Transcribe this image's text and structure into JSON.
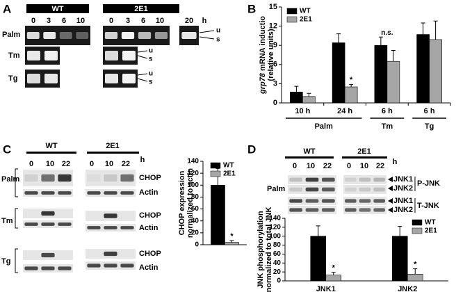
{
  "panels": {
    "A": {
      "letter": "A",
      "groups": [
        "WT",
        "2E1"
      ],
      "wt_times": [
        "0",
        "3",
        "6",
        "10"
      ],
      "e1_times": [
        "0",
        "3",
        "6",
        "10",
        "20"
      ],
      "unit": "h",
      "rows": [
        "Palm",
        "Tm",
        "Tg"
      ],
      "bands": [
        "u",
        "s"
      ]
    },
    "C": {
      "letter": "C",
      "groups": [
        "WT",
        "2E1"
      ],
      "times": [
        "0",
        "10",
        "22"
      ],
      "unit": "h",
      "rows": [
        "Palm",
        "Tm",
        "Tg"
      ],
      "proteins": [
        "CHOP",
        "Actin"
      ]
    },
    "D": {
      "letter": "D",
      "groups": [
        "WT",
        "2E1"
      ],
      "times": [
        "0",
        "10",
        "22"
      ],
      "unit": "h",
      "row": "Palm",
      "isoforms": [
        "JNK1",
        "JNK2"
      ],
      "blots": [
        "P-JNK",
        "T-JNK"
      ]
    },
    "B": {
      "letter": "B"
    }
  },
  "chart_data": [
    {
      "type": "bar",
      "ylabel_italic": "grp78",
      "ylabel": "mRNA inductio",
      "ylabel2": "(relative units)",
      "categories": [
        "10 h",
        "24 h",
        "6 h",
        "6 h"
      ],
      "groups": [
        {
          "name": "Palm",
          "size": 2
        },
        {
          "name": "Tm",
          "size": 1
        },
        {
          "name": "Tg",
          "size": 1
        }
      ],
      "series": [
        {
          "name": "WT",
          "color": "#000000",
          "values": [
            1.7,
            9.4,
            9.0,
            10.7
          ],
          "errors": [
            0.9,
            1.4,
            1.3,
            1.8
          ]
        },
        {
          "name": "2E1",
          "color": "#a6a6a6",
          "values": [
            1.0,
            2.5,
            6.5,
            9.9
          ],
          "errors": [
            0.5,
            0.4,
            1.7,
            2.9
          ]
        }
      ],
      "ylim": [
        0,
        15
      ],
      "yticks": [
        0,
        3,
        6,
        9,
        12,
        15
      ],
      "legend": "upper left",
      "annotations": [
        {
          "text": "*",
          "series": 1,
          "category": 1
        },
        {
          "text": "n.s.",
          "category": 2
        }
      ]
    },
    {
      "type": "bar",
      "ylabel": "CHOP expression",
      "ylabel2": "normalized to actin",
      "categories": [
        null
      ],
      "series": [
        {
          "name": "WT",
          "color": "#000000",
          "values": [
            100
          ],
          "errors": [
            28
          ]
        },
        {
          "name": "2E1",
          "color": "#a6a6a6",
          "values": [
            4
          ],
          "errors": [
            3
          ]
        }
      ],
      "ylim": [
        0,
        140
      ],
      "yticks": [
        0,
        20,
        40,
        60,
        80,
        100,
        120,
        140
      ],
      "legend": "upper right",
      "annotations": [
        {
          "text": "*",
          "series": 1,
          "category": 0
        }
      ]
    },
    {
      "type": "bar",
      "ylabel": "JNK phosphorylation",
      "ylabel2": "normalized to total JNK",
      "categories": [
        "JNK1",
        "JNK2"
      ],
      "series": [
        {
          "name": "WT",
          "color": "#000000",
          "values": [
            100,
            100
          ],
          "errors": [
            23,
            22
          ]
        },
        {
          "name": "2E1",
          "color": "#a6a6a6",
          "values": [
            13,
            15
          ],
          "errors": [
            6,
            12
          ]
        }
      ],
      "ylim": [
        0,
        140
      ],
      "yticks": [
        0,
        20,
        40,
        60,
        80,
        100,
        120,
        140
      ],
      "legend": "upper right",
      "annotations": [
        {
          "text": "*",
          "series": 1,
          "category": 0
        },
        {
          "text": "*",
          "series": 1,
          "category": 1
        }
      ]
    }
  ]
}
